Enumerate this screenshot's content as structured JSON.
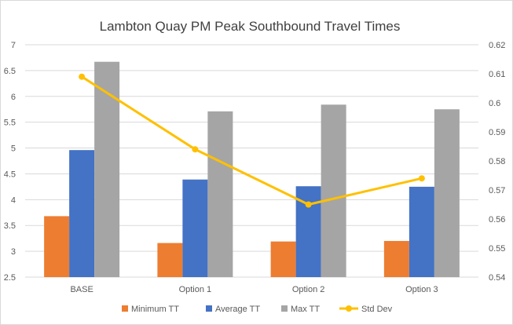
{
  "chart_data": {
    "type": "bar",
    "title": "Lambton Quay PM Peak Southbound Travel Times",
    "categories": [
      "BASE",
      "Option 1",
      "Option 2",
      "Option 3"
    ],
    "series": [
      {
        "name": "Minimum TT",
        "kind": "bar",
        "axis": "left",
        "color": "#ed7d31",
        "values": [
          3.68,
          3.16,
          3.19,
          3.2
        ]
      },
      {
        "name": "Average TT",
        "kind": "bar",
        "axis": "left",
        "color": "#4472c4",
        "values": [
          4.96,
          4.39,
          4.26,
          4.25
        ]
      },
      {
        "name": "Max TT",
        "kind": "bar",
        "axis": "left",
        "color": "#a5a5a5",
        "values": [
          6.67,
          5.71,
          5.84,
          5.75
        ]
      },
      {
        "name": "Std Dev",
        "kind": "line",
        "axis": "right",
        "color": "#ffc000",
        "values": [
          0.609,
          0.584,
          0.565,
          0.574
        ]
      }
    ],
    "left_axis": {
      "ylim": [
        2.5,
        7
      ],
      "ticks": [
        "2.5",
        "3",
        "3.5",
        "4",
        "4.5",
        "5",
        "5.5",
        "6",
        "6.5",
        "7"
      ]
    },
    "right_axis": {
      "ylim": [
        0.54,
        0.62
      ],
      "ticks": [
        "0.54",
        "0.55",
        "0.56",
        "0.57",
        "0.58",
        "0.59",
        "0.6",
        "0.61",
        "0.62"
      ]
    },
    "grid": true,
    "legend_position": "bottom"
  }
}
